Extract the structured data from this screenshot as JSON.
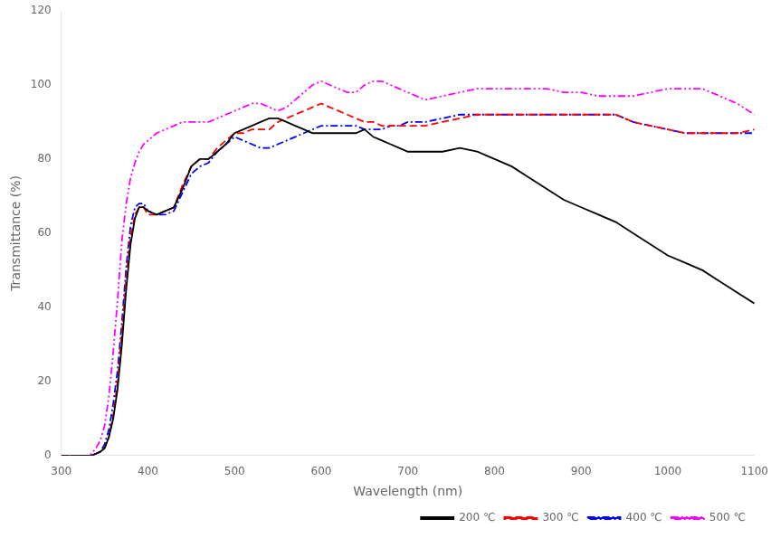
{
  "chart_data": {
    "type": "line",
    "xlabel": "Wavelength (nm)",
    "ylabel": "Transmittance (%)",
    "xlim": [
      300,
      1100
    ],
    "ylim": [
      0,
      120
    ],
    "xticks": [
      300,
      400,
      500,
      600,
      700,
      800,
      900,
      1000,
      1100
    ],
    "yticks": [
      0,
      20,
      40,
      60,
      80,
      100,
      120
    ],
    "grid": false,
    "legend": "lower right",
    "x": [
      300,
      305,
      310,
      315,
      320,
      325,
      330,
      335,
      340,
      345,
      350,
      355,
      360,
      365,
      370,
      375,
      380,
      385,
      390,
      395,
      400,
      410,
      420,
      430,
      440,
      450,
      460,
      470,
      480,
      490,
      500,
      510,
      520,
      530,
      540,
      550,
      560,
      570,
      580,
      590,
      600,
      610,
      620,
      630,
      640,
      650,
      660,
      670,
      680,
      690,
      700,
      720,
      740,
      760,
      780,
      800,
      820,
      840,
      860,
      880,
      900,
      920,
      940,
      960,
      980,
      1000,
      1020,
      1040,
      1060,
      1080,
      1100
    ],
    "series": [
      {
        "name": "200 ℃",
        "color": "#000000",
        "line_style": "solid",
        "values": [
          0,
          0,
          0,
          0,
          0,
          0,
          0,
          0,
          0.5,
          1,
          2,
          5,
          10,
          18,
          30,
          45,
          57,
          64,
          67,
          67,
          66,
          65,
          66,
          67,
          72,
          78,
          80,
          80,
          82,
          84,
          87,
          88,
          89,
          90,
          91,
          91,
          90,
          89,
          88,
          87,
          87,
          87,
          87,
          87,
          87,
          88,
          86,
          85,
          84,
          83,
          82,
          82,
          82,
          83,
          82,
          80,
          78,
          75,
          72,
          69,
          67,
          65,
          63,
          60,
          57,
          54,
          52,
          50,
          47,
          44,
          41
        ]
      },
      {
        "name": "300 ℃",
        "color": "#ff0000",
        "line_style": "dashed",
        "values": [
          0,
          0,
          0,
          0,
          0,
          0,
          0,
          0,
          0.5,
          1,
          2,
          5,
          11,
          20,
          33,
          48,
          59,
          65,
          67,
          67,
          65,
          65,
          66,
          67,
          73,
          78,
          80,
          80,
          83,
          85,
          87,
          87,
          88,
          88,
          88,
          90,
          91,
          92,
          93,
          94,
          95,
          94,
          93,
          92,
          91,
          90,
          90,
          89,
          89,
          89,
          89,
          89,
          90,
          91,
          92,
          92,
          92,
          92,
          92,
          92,
          92,
          92,
          92,
          90,
          89,
          88,
          87,
          87,
          87,
          87,
          88
        ]
      },
      {
        "name": "400 ℃",
        "color": "#0000ff",
        "line_style": "dashdot",
        "values": [
          0,
          0,
          0,
          0,
          0,
          0,
          0,
          0,
          0.5,
          1,
          3,
          7,
          14,
          23,
          36,
          51,
          62,
          67,
          68,
          68,
          66,
          65,
          65,
          66,
          71,
          76,
          78,
          79,
          82,
          84,
          86,
          85,
          84,
          83,
          83,
          84,
          85,
          86,
          87,
          88,
          89,
          89,
          89,
          89,
          89,
          88,
          88,
          88,
          89,
          89,
          90,
          90,
          91,
          92,
          92,
          92,
          92,
          92,
          92,
          92,
          92,
          92,
          92,
          90,
          89,
          88,
          87,
          87,
          87,
          87,
          87
        ]
      },
      {
        "name": "500 ℃",
        "color": "#ff00ff",
        "line_style": "dashdotdot",
        "values": [
          0,
          0,
          0,
          0,
          0,
          0,
          0,
          0.5,
          2,
          4,
          8,
          16,
          28,
          42,
          58,
          68,
          75,
          79,
          82,
          84,
          85,
          87,
          88,
          89,
          90,
          90,
          90,
          90,
          91,
          92,
          93,
          94,
          95,
          95,
          94,
          93,
          94,
          96,
          98,
          100,
          101,
          100,
          99,
          98,
          98,
          100,
          101,
          101,
          100,
          99,
          98,
          96,
          97,
          98,
          99,
          99,
          99,
          99,
          99,
          98,
          98,
          97,
          97,
          97,
          98,
          99,
          99,
          99,
          97,
          95,
          92
        ]
      }
    ]
  }
}
